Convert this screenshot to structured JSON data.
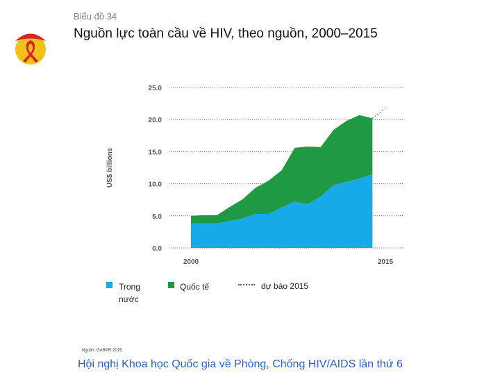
{
  "header": {
    "caption": "Biểu đồ 34",
    "title": "Nguồn lực toàn cầu về HIV, theo nguồn, 2000–2015"
  },
  "legend": {
    "domestic": "Trong nước",
    "international": "Quốc tế",
    "projection": "dự báo 2015"
  },
  "source": "Nguồn: GARPR 2015.",
  "footer": "Hội nghị Khoa học Quốc gia về Phòng, Chống HIV/AIDS lần thứ 6",
  "colors": {
    "domestic": "#18a9e8",
    "international": "#1f9a43",
    "logo_yellow": "#f2c21b",
    "logo_red": "#d8262d",
    "footer_text": "#2e5ec8"
  },
  "chart_data": {
    "type": "area",
    "stacked": true,
    "title": "Nguồn lực toàn cầu về HIV, theo nguồn, 2000–2015",
    "xlabel": "",
    "ylabel": "US$ billions",
    "xlim": [
      2000,
      2015
    ],
    "ylim": [
      0,
      25
    ],
    "x_ticks": [
      "2000",
      "2015"
    ],
    "y_ticks": [
      "0.0",
      "5.0",
      "10.0",
      "15.0",
      "20.0",
      "25.0"
    ],
    "grid": true,
    "x": [
      2000,
      2001,
      2002,
      2003,
      2004,
      2005,
      2006,
      2007,
      2008,
      2009,
      2010,
      2011,
      2012,
      2013,
      2014
    ],
    "series": [
      {
        "name": "Trong nước",
        "values": [
          3.8,
          3.8,
          3.8,
          4.2,
          4.6,
          5.3,
          5.3,
          6.3,
          7.2,
          6.8,
          8.0,
          9.8,
          10.3,
          10.8,
          11.5
        ]
      },
      {
        "name": "Quốc tế",
        "values": [
          1.2,
          1.3,
          1.3,
          2.2,
          3.0,
          4.1,
          5.2,
          5.8,
          8.4,
          9.0,
          7.7,
          8.6,
          9.5,
          9.9,
          8.7
        ]
      }
    ],
    "projection": {
      "name": "dự báo 2015",
      "x": [
        2014,
        2015
      ],
      "totals": [
        20.2,
        21.8
      ]
    }
  }
}
